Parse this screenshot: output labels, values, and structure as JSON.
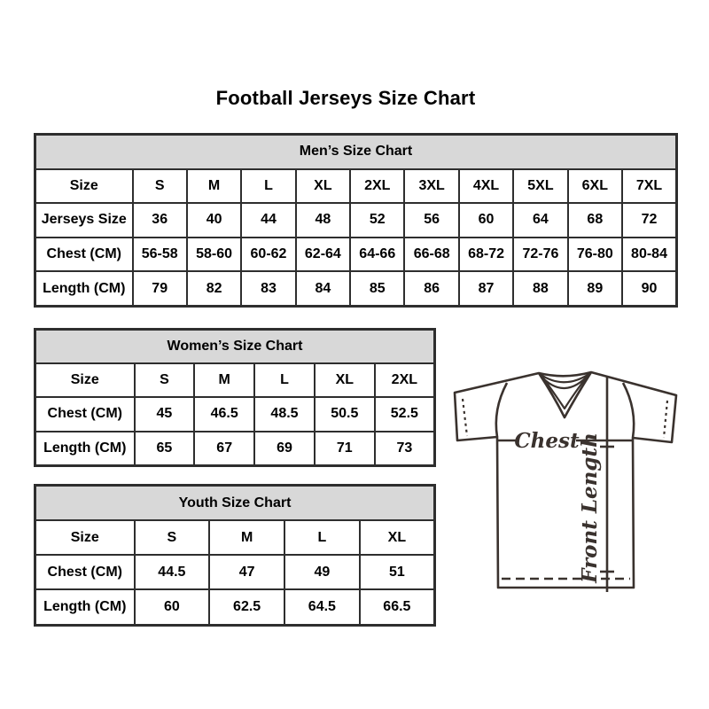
{
  "title": "Football Jerseys Size Chart",
  "tables": {
    "men": {
      "header": "Men’s Size Chart",
      "rows": [
        {
          "label": "Size",
          "values": [
            "S",
            "M",
            "L",
            "XL",
            "2XL",
            "3XL",
            "4XL",
            "5XL",
            "6XL",
            "7XL"
          ]
        },
        {
          "label": "Jerseys Size",
          "values": [
            "36",
            "40",
            "44",
            "48",
            "52",
            "56",
            "60",
            "64",
            "68",
            "72"
          ]
        },
        {
          "label": "Chest (CM)",
          "values": [
            "56-58",
            "58-60",
            "60-62",
            "62-64",
            "64-66",
            "66-68",
            "68-72",
            "72-76",
            "76-80",
            "80-84"
          ]
        },
        {
          "label": "Length (CM)",
          "values": [
            "79",
            "82",
            "83",
            "84",
            "85",
            "86",
            "87",
            "88",
            "89",
            "90"
          ]
        }
      ]
    },
    "women": {
      "header": "Women’s Size Chart",
      "rows": [
        {
          "label": "Size",
          "values": [
            "S",
            "M",
            "L",
            "XL",
            "2XL"
          ]
        },
        {
          "label": "Chest (CM)",
          "values": [
            "45",
            "46.5",
            "48.5",
            "50.5",
            "52.5"
          ]
        },
        {
          "label": "Length (CM)",
          "values": [
            "65",
            "67",
            "69",
            "71",
            "73"
          ]
        }
      ]
    },
    "youth": {
      "header": "Youth Size Chart",
      "rows": [
        {
          "label": "Size",
          "values": [
            "S",
            "M",
            "L",
            "XL"
          ]
        },
        {
          "label": "Chest (CM)",
          "values": [
            "44.5",
            "47",
            "49",
            "51"
          ]
        },
        {
          "label": "Length (CM)",
          "values": [
            "60",
            "62.5",
            "64.5",
            "66.5"
          ]
        }
      ]
    }
  },
  "diagram": {
    "chest_label": "Chest",
    "front_length_label": "Front Length"
  },
  "colors": {
    "header_bg": "#d8d8d8",
    "table_border": "#2e2e2e",
    "sketch_ink": "#3a322e",
    "text": "#000000"
  }
}
